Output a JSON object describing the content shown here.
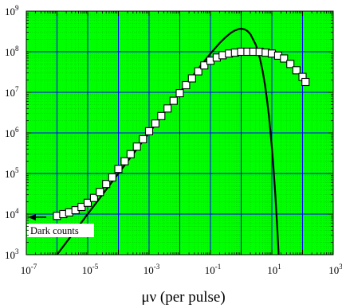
{
  "chart_data": {
    "type": "scatter",
    "title": "",
    "xlabel": "μν (per pulse)",
    "ylabel": "",
    "x_scale": "log",
    "y_scale": "log",
    "xlim": [
      1e-07,
      1000
    ],
    "ylim": [
      1000,
      1000000000
    ],
    "grid": "major and minor",
    "colors": {
      "background": "#00ff00",
      "major_grid": "#0000ff",
      "minor_grid": "#00c800",
      "markers": "#000000",
      "curve": "#000000"
    },
    "x_ticks": [
      {
        "base": "10",
        "exp": "-7"
      },
      {
        "base": "10",
        "exp": "-5"
      },
      {
        "base": "10",
        "exp": "-3"
      },
      {
        "base": "10",
        "exp": "-1"
      },
      {
        "base": "10",
        "exp": "1"
      },
      {
        "base": "10",
        "exp": "3"
      }
    ],
    "y_ticks": [
      {
        "base": "10",
        "exp": "3"
      },
      {
        "base": "10",
        "exp": "4"
      },
      {
        "base": "10",
        "exp": "5"
      },
      {
        "base": "10",
        "exp": "6"
      },
      {
        "base": "10",
        "exp": "7"
      },
      {
        "base": "10",
        "exp": "8"
      },
      {
        "base": "10",
        "exp": "9"
      }
    ],
    "annotation": {
      "text": "Dark counts",
      "points_to": {
        "x": 1e-07,
        "y": 8000
      }
    },
    "series": [
      {
        "marker": "open-square",
        "points": [
          {
            "x": 1e-06,
            "y": 9000
          },
          {
            "x": 1.6e-06,
            "y": 10000
          },
          {
            "x": 2.5e-06,
            "y": 11000
          },
          {
            "x": 4e-06,
            "y": 12500
          },
          {
            "x": 6.3e-06,
            "y": 15000
          },
          {
            "x": 1e-05,
            "y": 19000
          },
          {
            "x": 1.6e-05,
            "y": 25000
          },
          {
            "x": 2.5e-05,
            "y": 35000
          },
          {
            "x": 4e-05,
            "y": 55000
          },
          {
            "x": 6.3e-05,
            "y": 80000
          },
          {
            "x": 0.0001,
            "y": 130000
          },
          {
            "x": 0.00016,
            "y": 200000
          },
          {
            "x": 0.00025,
            "y": 300000
          },
          {
            "x": 0.0004,
            "y": 460000
          },
          {
            "x": 0.00063,
            "y": 700000
          },
          {
            "x": 0.001,
            "y": 1100000
          },
          {
            "x": 0.0016,
            "y": 1700000
          },
          {
            "x": 0.0025,
            "y": 2600000
          },
          {
            "x": 0.004,
            "y": 4000000
          },
          {
            "x": 0.0063,
            "y": 6200000
          },
          {
            "x": 0.01,
            "y": 9500000
          },
          {
            "x": 0.016,
            "y": 15000000
          },
          {
            "x": 0.025,
            "y": 22000000
          },
          {
            "x": 0.04,
            "y": 33000000
          },
          {
            "x": 0.063,
            "y": 46000000
          },
          {
            "x": 0.1,
            "y": 60000000
          },
          {
            "x": 0.16,
            "y": 72000000
          },
          {
            "x": 0.25,
            "y": 82000000
          },
          {
            "x": 0.4,
            "y": 90000000
          },
          {
            "x": 0.63,
            "y": 95000000
          },
          {
            "x": 1,
            "y": 100000000
          },
          {
            "x": 1.6,
            "y": 100000000
          },
          {
            "x": 2.5,
            "y": 100000000
          },
          {
            "x": 4,
            "y": 99000000
          },
          {
            "x": 6.3,
            "y": 95000000
          },
          {
            "x": 10,
            "y": 90000000
          },
          {
            "x": 16,
            "y": 80000000
          },
          {
            "x": 25,
            "y": 68000000
          },
          {
            "x": 40,
            "y": 50000000
          },
          {
            "x": 63,
            "y": 35000000
          },
          {
            "x": 100,
            "y": 24000000
          },
          {
            "x": 125,
            "y": 18000000
          }
        ]
      },
      {
        "marker": "line",
        "points": [
          {
            "x": 1e-06,
            "y": 1000
          },
          {
            "x": 2e-06,
            "y": 2000
          },
          {
            "x": 5e-06,
            "y": 5000
          },
          {
            "x": 1e-05,
            "y": 10000
          },
          {
            "x": 0.0001,
            "y": 100000
          },
          {
            "x": 0.001,
            "y": 1000000
          },
          {
            "x": 0.01,
            "y": 9900000
          },
          {
            "x": 0.03,
            "y": 29000000
          },
          {
            "x": 0.1,
            "y": 90000000
          },
          {
            "x": 0.2,
            "y": 164000000
          },
          {
            "x": 0.3,
            "y": 222000000
          },
          {
            "x": 0.45,
            "y": 287000000
          },
          {
            "x": 0.6,
            "y": 329000000
          },
          {
            "x": 0.8,
            "y": 359000000
          },
          {
            "x": 1,
            "y": 368000000
          },
          {
            "x": 1.3,
            "y": 355000000
          },
          {
            "x": 1.6,
            "y": 323000000
          },
          {
            "x": 2,
            "y": 271000000
          },
          {
            "x": 3,
            "y": 149000000
          },
          {
            "x": 4,
            "y": 73000000
          },
          {
            "x": 5,
            "y": 34000000
          },
          {
            "x": 6,
            "y": 14900000
          },
          {
            "x": 7,
            "y": 6400000
          },
          {
            "x": 8,
            "y": 2700000
          },
          {
            "x": 9,
            "y": 1110000
          },
          {
            "x": 10,
            "y": 454000
          },
          {
            "x": 11,
            "y": 184000
          },
          {
            "x": 12,
            "y": 74000
          },
          {
            "x": 13,
            "y": 29400
          },
          {
            "x": 14,
            "y": 11500
          },
          {
            "x": 15,
            "y": 4600
          },
          {
            "x": 16,
            "y": 1800
          },
          {
            "x": 17,
            "y": 700
          }
        ]
      }
    ]
  }
}
